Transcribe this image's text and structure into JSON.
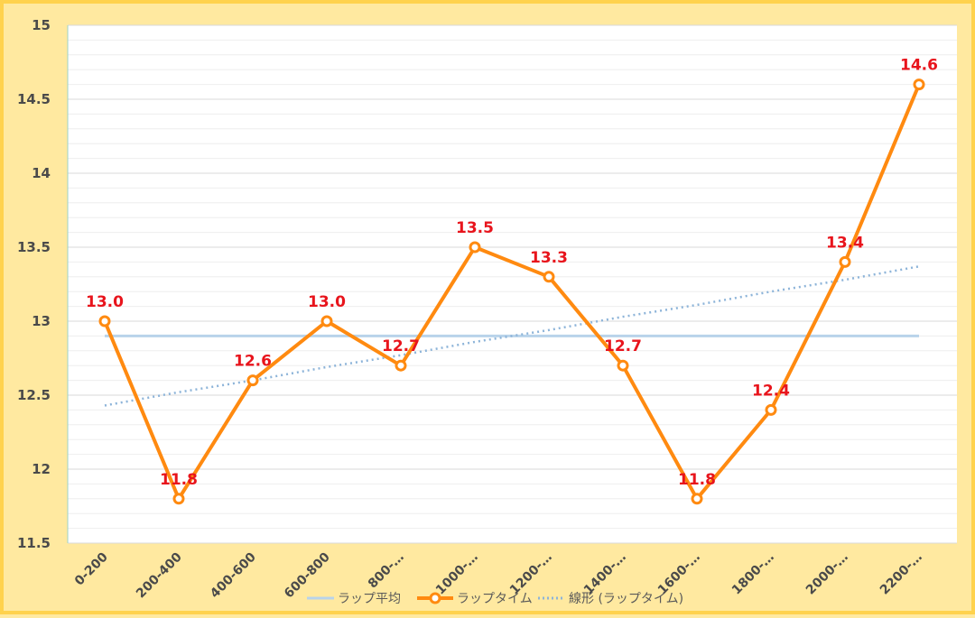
{
  "chart_data": {
    "type": "line",
    "title": "",
    "xlabel": "",
    "ylabel": "",
    "ylim": [
      11.5,
      15
    ],
    "yticks": [
      "11.5",
      "12",
      "12.5",
      "13",
      "13.5",
      "14",
      "14.5",
      "15"
    ],
    "categories": [
      "0-200",
      "200-400",
      "400-600",
      "600-800",
      "800-…",
      "1000-…",
      "1200-…",
      "1400-…",
      "1600-…",
      "1800-…",
      "2000-…",
      "2200-…"
    ],
    "series": [
      {
        "name": "ラップ平均",
        "values": [
          12.9,
          12.9,
          12.9,
          12.9,
          12.9,
          12.9,
          12.9,
          12.9,
          12.9,
          12.9,
          12.9,
          12.9
        ],
        "color": "#b8d3ea"
      },
      {
        "name": "ラップタイム",
        "values": [
          13.0,
          11.8,
          12.6,
          13.0,
          12.7,
          13.5,
          13.3,
          12.7,
          11.8,
          12.4,
          13.4,
          14.6
        ],
        "data_labels": [
          "13.0",
          "11.8",
          "12.6",
          "13.0",
          "12.7",
          "13.5",
          "13.3",
          "12.7",
          "11.8",
          "12.4",
          "13.4",
          "14.6"
        ],
        "color": "#ff8a10"
      },
      {
        "name": "線形 (ラップタイム)",
        "type": "trendline",
        "values": [
          12.43,
          12.52,
          12.6,
          12.69,
          12.77,
          12.86,
          12.94,
          13.03,
          13.11,
          13.2,
          13.28,
          13.37
        ],
        "color": "#8db4d9"
      }
    ],
    "grid": true,
    "legend_position": "bottom"
  }
}
